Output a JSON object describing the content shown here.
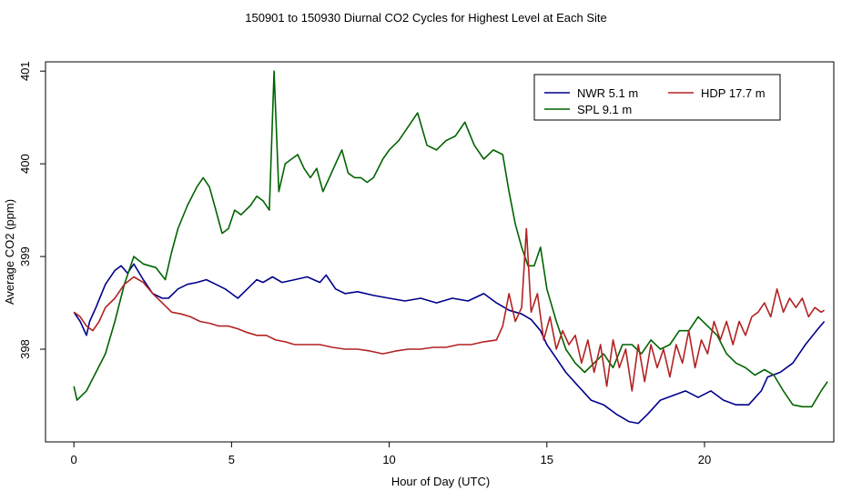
{
  "chart_data": {
    "type": "line",
    "title": "150901  to  150930 Diurnal CO2 Cycles for Highest Level at Each Site",
    "xlabel": "Hour of Day (UTC)",
    "ylabel": "Average CO2 (ppm)",
    "xlim": [
      -0.9,
      24.1
    ],
    "ylim": [
      397.0,
      401.1
    ],
    "x_ticks": [
      0,
      5,
      10,
      15,
      20
    ],
    "y_ticks": [
      398,
      399,
      400,
      401
    ],
    "x_tick_labels": [
      "0",
      "5",
      "10",
      "15",
      "20"
    ],
    "y_tick_labels": [
      "398",
      "399",
      "400",
      "401"
    ],
    "grid": false,
    "legend_position": "top-right",
    "legend": [
      {
        "label": "NWR   5.1 m",
        "series": 0
      },
      {
        "label": "HDP   17.7 m",
        "series": 2
      },
      {
        "label": "SPL   9.1 m",
        "series": 1
      }
    ],
    "series": [
      {
        "name": "NWR   5.1 m",
        "color": "#00008b",
        "points": [
          [
            0,
            398.4
          ],
          [
            0.2,
            398.3
          ],
          [
            0.4,
            398.15
          ],
          [
            0.5,
            398.3
          ],
          [
            0.7,
            398.45
          ],
          [
            1.0,
            398.7
          ],
          [
            1.3,
            398.85
          ],
          [
            1.5,
            398.9
          ],
          [
            1.7,
            398.82
          ],
          [
            1.9,
            398.92
          ],
          [
            2.2,
            398.75
          ],
          [
            2.5,
            398.6
          ],
          [
            2.8,
            398.55
          ],
          [
            3.0,
            398.55
          ],
          [
            3.3,
            398.65
          ],
          [
            3.6,
            398.7
          ],
          [
            3.9,
            398.72
          ],
          [
            4.2,
            398.75
          ],
          [
            4.5,
            398.7
          ],
          [
            4.8,
            398.65
          ],
          [
            5.0,
            398.6
          ],
          [
            5.2,
            398.55
          ],
          [
            5.5,
            398.65
          ],
          [
            5.8,
            398.75
          ],
          [
            6.0,
            398.72
          ],
          [
            6.3,
            398.78
          ],
          [
            6.6,
            398.72
          ],
          [
            7.0,
            398.75
          ],
          [
            7.4,
            398.78
          ],
          [
            7.8,
            398.72
          ],
          [
            8.0,
            398.8
          ],
          [
            8.3,
            398.65
          ],
          [
            8.6,
            398.6
          ],
          [
            9.0,
            398.62
          ],
          [
            9.5,
            398.58
          ],
          [
            10.0,
            398.55
          ],
          [
            10.5,
            398.52
          ],
          [
            11.0,
            398.55
          ],
          [
            11.5,
            398.5
          ],
          [
            12.0,
            398.55
          ],
          [
            12.5,
            398.52
          ],
          [
            13.0,
            398.6
          ],
          [
            13.4,
            398.5
          ],
          [
            13.8,
            398.42
          ],
          [
            14.2,
            398.38
          ],
          [
            14.5,
            398.32
          ],
          [
            14.8,
            398.2
          ],
          [
            15.0,
            398.05
          ],
          [
            15.3,
            397.9
          ],
          [
            15.6,
            397.75
          ],
          [
            16.0,
            397.6
          ],
          [
            16.4,
            397.45
          ],
          [
            16.8,
            397.4
          ],
          [
            17.2,
            397.3
          ],
          [
            17.6,
            397.22
          ],
          [
            17.9,
            397.2
          ],
          [
            18.2,
            397.3
          ],
          [
            18.6,
            397.45
          ],
          [
            19.0,
            397.5
          ],
          [
            19.4,
            397.55
          ],
          [
            19.8,
            397.48
          ],
          [
            20.2,
            397.55
          ],
          [
            20.6,
            397.45
          ],
          [
            21.0,
            397.4
          ],
          [
            21.4,
            397.4
          ],
          [
            21.8,
            397.55
          ],
          [
            22.0,
            397.7
          ],
          [
            22.4,
            397.75
          ],
          [
            22.8,
            397.85
          ],
          [
            23.2,
            398.05
          ],
          [
            23.6,
            398.22
          ],
          [
            23.8,
            398.3
          ]
        ]
      },
      {
        "name": "SPL   9.1 m",
        "color": "#006400",
        "points": [
          [
            0,
            397.6
          ],
          [
            0.1,
            397.45
          ],
          [
            0.4,
            397.55
          ],
          [
            0.7,
            397.75
          ],
          [
            1.0,
            397.95
          ],
          [
            1.3,
            398.3
          ],
          [
            1.6,
            398.7
          ],
          [
            1.9,
            399.0
          ],
          [
            2.2,
            398.92
          ],
          [
            2.6,
            398.88
          ],
          [
            2.9,
            398.75
          ],
          [
            3.1,
            399.05
          ],
          [
            3.3,
            399.3
          ],
          [
            3.6,
            399.55
          ],
          [
            3.9,
            399.75
          ],
          [
            4.1,
            399.85
          ],
          [
            4.3,
            399.75
          ],
          [
            4.5,
            399.5
          ],
          [
            4.7,
            399.25
          ],
          [
            4.9,
            399.3
          ],
          [
            5.1,
            399.5
          ],
          [
            5.3,
            399.45
          ],
          [
            5.6,
            399.55
          ],
          [
            5.8,
            399.65
          ],
          [
            6.0,
            399.6
          ],
          [
            6.2,
            399.5
          ],
          [
            6.35,
            401.0
          ],
          [
            6.5,
            399.7
          ],
          [
            6.7,
            400.0
          ],
          [
            6.9,
            400.05
          ],
          [
            7.1,
            400.1
          ],
          [
            7.3,
            399.95
          ],
          [
            7.5,
            399.85
          ],
          [
            7.7,
            399.95
          ],
          [
            7.9,
            399.7
          ],
          [
            8.1,
            399.85
          ],
          [
            8.3,
            400.0
          ],
          [
            8.5,
            400.15
          ],
          [
            8.7,
            399.9
          ],
          [
            8.9,
            399.85
          ],
          [
            9.1,
            399.85
          ],
          [
            9.3,
            399.8
          ],
          [
            9.5,
            399.85
          ],
          [
            9.8,
            400.05
          ],
          [
            10.0,
            400.15
          ],
          [
            10.3,
            400.25
          ],
          [
            10.6,
            400.4
          ],
          [
            10.9,
            400.55
          ],
          [
            11.2,
            400.2
          ],
          [
            11.5,
            400.15
          ],
          [
            11.8,
            400.25
          ],
          [
            12.1,
            400.3
          ],
          [
            12.4,
            400.45
          ],
          [
            12.7,
            400.2
          ],
          [
            13.0,
            400.05
          ],
          [
            13.3,
            400.15
          ],
          [
            13.6,
            400.1
          ],
          [
            13.8,
            399.7
          ],
          [
            14.0,
            399.35
          ],
          [
            14.2,
            399.1
          ],
          [
            14.4,
            398.9
          ],
          [
            14.6,
            398.9
          ],
          [
            14.8,
            399.1
          ],
          [
            15.0,
            398.65
          ],
          [
            15.3,
            398.3
          ],
          [
            15.6,
            398.0
          ],
          [
            15.9,
            397.85
          ],
          [
            16.2,
            397.75
          ],
          [
            16.5,
            397.85
          ],
          [
            16.8,
            397.95
          ],
          [
            17.1,
            397.8
          ],
          [
            17.4,
            398.05
          ],
          [
            17.7,
            398.05
          ],
          [
            18.0,
            397.95
          ],
          [
            18.3,
            398.1
          ],
          [
            18.6,
            398.0
          ],
          [
            18.9,
            398.05
          ],
          [
            19.2,
            398.2
          ],
          [
            19.5,
            398.2
          ],
          [
            19.8,
            398.35
          ],
          [
            20.1,
            398.25
          ],
          [
            20.4,
            398.15
          ],
          [
            20.7,
            397.95
          ],
          [
            21.0,
            397.85
          ],
          [
            21.3,
            397.8
          ],
          [
            21.6,
            397.72
          ],
          [
            21.9,
            397.78
          ],
          [
            22.2,
            397.72
          ],
          [
            22.5,
            397.55
          ],
          [
            22.8,
            397.4
          ],
          [
            23.1,
            397.38
          ],
          [
            23.4,
            397.38
          ],
          [
            23.7,
            397.55
          ],
          [
            23.9,
            397.65
          ]
        ]
      },
      {
        "name": "HDP   17.7 m",
        "color": "#b22222",
        "points": [
          [
            0,
            398.4
          ],
          [
            0.2,
            398.35
          ],
          [
            0.4,
            398.25
          ],
          [
            0.6,
            398.2
          ],
          [
            0.8,
            398.3
          ],
          [
            1.0,
            398.45
          ],
          [
            1.3,
            398.55
          ],
          [
            1.6,
            398.7
          ],
          [
            1.9,
            398.78
          ],
          [
            2.2,
            398.72
          ],
          [
            2.5,
            398.6
          ],
          [
            2.8,
            398.5
          ],
          [
            3.1,
            398.4
          ],
          [
            3.4,
            398.38
          ],
          [
            3.7,
            398.35
          ],
          [
            4.0,
            398.3
          ],
          [
            4.3,
            398.28
          ],
          [
            4.6,
            398.25
          ],
          [
            4.9,
            398.25
          ],
          [
            5.2,
            398.22
          ],
          [
            5.5,
            398.18
          ],
          [
            5.8,
            398.15
          ],
          [
            6.1,
            398.15
          ],
          [
            6.4,
            398.1
          ],
          [
            6.7,
            398.08
          ],
          [
            7.0,
            398.05
          ],
          [
            7.4,
            398.05
          ],
          [
            7.8,
            398.05
          ],
          [
            8.2,
            398.02
          ],
          [
            8.6,
            398.0
          ],
          [
            9.0,
            398.0
          ],
          [
            9.4,
            397.98
          ],
          [
            9.8,
            397.95
          ],
          [
            10.2,
            397.98
          ],
          [
            10.6,
            398.0
          ],
          [
            11.0,
            398.0
          ],
          [
            11.4,
            398.02
          ],
          [
            11.8,
            398.02
          ],
          [
            12.2,
            398.05
          ],
          [
            12.6,
            398.05
          ],
          [
            13.0,
            398.08
          ],
          [
            13.4,
            398.1
          ],
          [
            13.6,
            398.25
          ],
          [
            13.8,
            398.6
          ],
          [
            14.0,
            398.3
          ],
          [
            14.2,
            398.45
          ],
          [
            14.35,
            399.3
          ],
          [
            14.5,
            398.4
          ],
          [
            14.7,
            398.6
          ],
          [
            14.9,
            398.1
          ],
          [
            15.1,
            398.35
          ],
          [
            15.3,
            398.0
          ],
          [
            15.5,
            398.2
          ],
          [
            15.7,
            398.05
          ],
          [
            15.9,
            398.15
          ],
          [
            16.1,
            397.85
          ],
          [
            16.3,
            398.1
          ],
          [
            16.5,
            397.75
          ],
          [
            16.7,
            398.05
          ],
          [
            16.9,
            397.6
          ],
          [
            17.1,
            398.1
          ],
          [
            17.3,
            397.8
          ],
          [
            17.5,
            398.0
          ],
          [
            17.7,
            397.55
          ],
          [
            17.9,
            398.05
          ],
          [
            18.1,
            397.65
          ],
          [
            18.3,
            398.05
          ],
          [
            18.5,
            397.8
          ],
          [
            18.7,
            398.0
          ],
          [
            18.9,
            397.7
          ],
          [
            19.1,
            398.05
          ],
          [
            19.3,
            397.85
          ],
          [
            19.5,
            398.2
          ],
          [
            19.7,
            397.8
          ],
          [
            19.9,
            398.1
          ],
          [
            20.1,
            397.95
          ],
          [
            20.3,
            398.3
          ],
          [
            20.5,
            398.1
          ],
          [
            20.7,
            398.3
          ],
          [
            20.9,
            398.05
          ],
          [
            21.1,
            398.3
          ],
          [
            21.3,
            398.15
          ],
          [
            21.5,
            398.35
          ],
          [
            21.7,
            398.4
          ],
          [
            21.9,
            398.5
          ],
          [
            22.1,
            398.35
          ],
          [
            22.3,
            398.65
          ],
          [
            22.5,
            398.4
          ],
          [
            22.7,
            398.55
          ],
          [
            22.9,
            398.45
          ],
          [
            23.1,
            398.55
          ],
          [
            23.3,
            398.35
          ],
          [
            23.5,
            398.45
          ],
          [
            23.7,
            398.4
          ],
          [
            23.8,
            398.42
          ]
        ]
      }
    ]
  }
}
